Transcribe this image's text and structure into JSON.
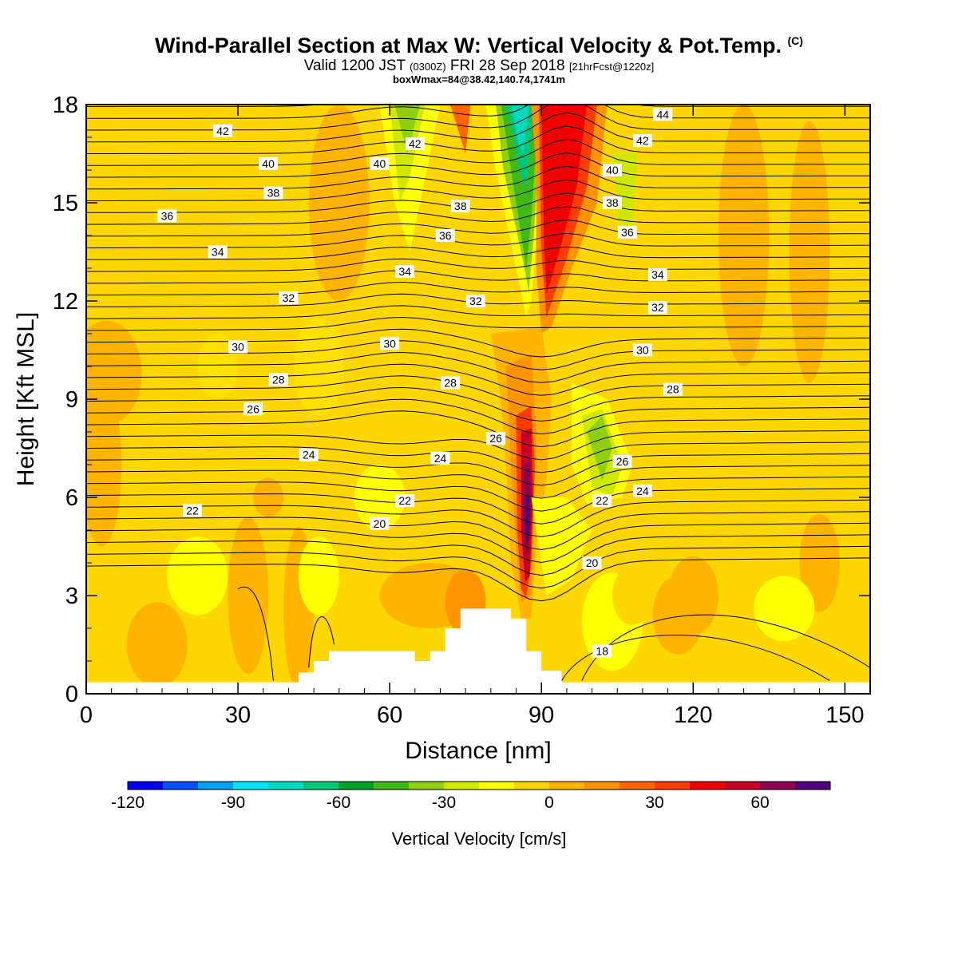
{
  "title": {
    "main": "Wind-Parallel Section at Max W: Vertical Velocity & Pot.Temp.",
    "copyright": "(C)",
    "valid_prefix": "Valid 1200 JST",
    "valid_utc": "(0300Z)",
    "valid_date": "FRI 28 Sep 2018",
    "forecast": "[21hrFcst@1220z]",
    "box": "boxWmax=84@38.42,140.74,1741m"
  },
  "chart_data": {
    "type": "heatmap",
    "xlabel": "Distance [nm]",
    "ylabel": "Height [Kft MSL]",
    "xlim": [
      0,
      155
    ],
    "ylim": [
      0,
      18
    ],
    "xticks": [
      "0",
      "30",
      "60",
      "90",
      "120",
      "150"
    ],
    "yticks": [
      "0",
      "3",
      "6",
      "9",
      "12",
      "15",
      "18"
    ],
    "field": "Vertical Velocity",
    "colorbar": {
      "label": "Vertical Velocity [cm/s]",
      "ticks": [
        "-120",
        "-90",
        "-60",
        "-30",
        "0",
        "30",
        "60"
      ],
      "range": [
        -120,
        80
      ],
      "colors": [
        "#0000f0",
        "#0050f8",
        "#00a0f0",
        "#00e8f8",
        "#00d8c0",
        "#00c878",
        "#00a028",
        "#40b818",
        "#90d010",
        "#d0e800",
        "#ffff00",
        "#ffd700",
        "#ffb400",
        "#ff9400",
        "#ff6400",
        "#ff3c00",
        "#f00000",
        "#c80028",
        "#900050",
        "#500078"
      ]
    },
    "contour_labels": [
      {
        "x": 27,
        "y": 17.2,
        "v": "42"
      },
      {
        "x": 36,
        "y": 16.2,
        "v": "40"
      },
      {
        "x": 37,
        "y": 15.3,
        "v": "38"
      },
      {
        "x": 16,
        "y": 14.6,
        "v": "36"
      },
      {
        "x": 26,
        "y": 13.5,
        "v": "34"
      },
      {
        "x": 40,
        "y": 12.1,
        "v": "32"
      },
      {
        "x": 30,
        "y": 10.6,
        "v": "30"
      },
      {
        "x": 38,
        "y": 9.6,
        "v": "28"
      },
      {
        "x": 33,
        "y": 8.7,
        "v": "26"
      },
      {
        "x": 44,
        "y": 7.3,
        "v": "24"
      },
      {
        "x": 21,
        "y": 5.6,
        "v": "22"
      },
      {
        "x": 58,
        "y": 5.2,
        "v": "20"
      },
      {
        "x": 65,
        "y": 16.8,
        "v": "42"
      },
      {
        "x": 58,
        "y": 16.2,
        "v": "40"
      },
      {
        "x": 74,
        "y": 14.9,
        "v": "38"
      },
      {
        "x": 71,
        "y": 14.0,
        "v": "36"
      },
      {
        "x": 63,
        "y": 12.9,
        "v": "34"
      },
      {
        "x": 77,
        "y": 12.0,
        "v": "32"
      },
      {
        "x": 60,
        "y": 10.7,
        "v": "30"
      },
      {
        "x": 72,
        "y": 9.5,
        "v": "28"
      },
      {
        "x": 81,
        "y": 7.8,
        "v": "26"
      },
      {
        "x": 70,
        "y": 7.2,
        "v": "24"
      },
      {
        "x": 63,
        "y": 5.9,
        "v": "22"
      },
      {
        "x": 114,
        "y": 17.7,
        "v": "44"
      },
      {
        "x": 110,
        "y": 16.9,
        "v": "42"
      },
      {
        "x": 104,
        "y": 16.0,
        "v": "40"
      },
      {
        "x": 104,
        "y": 15.0,
        "v": "38"
      },
      {
        "x": 107,
        "y": 14.1,
        "v": "36"
      },
      {
        "x": 113,
        "y": 12.8,
        "v": "34"
      },
      {
        "x": 113,
        "y": 11.8,
        "v": "32"
      },
      {
        "x": 110,
        "y": 10.5,
        "v": "30"
      },
      {
        "x": 116,
        "y": 9.3,
        "v": "28"
      },
      {
        "x": 106,
        "y": 7.1,
        "v": "26"
      },
      {
        "x": 110,
        "y": 6.2,
        "v": "24"
      },
      {
        "x": 102,
        "y": 5.9,
        "v": "22"
      },
      {
        "x": 100,
        "y": 4.0,
        "v": "20"
      },
      {
        "x": 102,
        "y": 1.3,
        "v": "18"
      }
    ],
    "terrain_kft": [
      [
        0,
        0.35
      ],
      [
        42,
        0.35
      ],
      [
        42,
        0.65
      ],
      [
        45,
        0.65
      ],
      [
        45,
        1.0
      ],
      [
        48,
        1.0
      ],
      [
        48,
        1.3
      ],
      [
        65,
        1.3
      ],
      [
        65,
        1.0
      ],
      [
        68,
        1.0
      ],
      [
        68,
        1.3
      ],
      [
        71,
        1.3
      ],
      [
        71,
        2.0
      ],
      [
        74,
        2.0
      ],
      [
        74,
        2.6
      ],
      [
        84,
        2.6
      ],
      [
        84,
        2.3
      ],
      [
        87,
        2.3
      ],
      [
        87,
        1.3
      ],
      [
        90,
        1.3
      ],
      [
        90,
        0.7
      ],
      [
        94,
        0.7
      ],
      [
        94,
        0.35
      ],
      [
        155,
        0.35
      ]
    ]
  }
}
